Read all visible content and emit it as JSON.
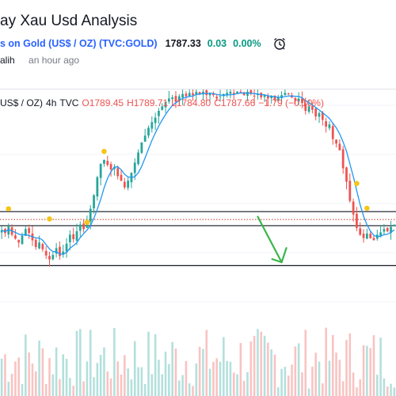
{
  "header": {
    "title": "ay Xau Usd Analysis",
    "symbol_link": "s on Gold (US$ / OZ) (TVC:GOLD)",
    "price": "1787.33",
    "change": "0.03",
    "change_pct": "0.00%",
    "author": "alih",
    "time": "an hour ago",
    "alarm_icon": "alarm-clock-icon"
  },
  "legend": {
    "symbol": "US$ / OZ)",
    "interval": "4h",
    "source": "TVC",
    "open": "O1789.45",
    "high": "H1789.71",
    "low": "L1784.80",
    "close": "C1787.66",
    "change": "−1.79 (−0.10%)"
  },
  "colors": {
    "up": "#26a69a",
    "down": "#ef5350",
    "ma_line": "#2196f3",
    "dot": "#f5c518",
    "arrow": "#3ab54a",
    "level_line": "#131722",
    "dotted_line": "#c0392b"
  },
  "chart_data": {
    "type": "candlestick",
    "interval": "4h",
    "ylim": [
      1768,
      1806
    ],
    "closes": [
      1781.0,
      1780.5,
      1781.8,
      1780.2,
      1779.5,
      1778.8,
      1780.0,
      1781.2,
      1780.5,
      1779.2,
      1778.0,
      1778.8,
      1777.6,
      1776.5,
      1775.8,
      1776.6,
      1777.8,
      1776.4,
      1777.2,
      1778.6,
      1780.2,
      1779.4,
      1780.8,
      1782.0,
      1781.2,
      1782.6,
      1784.8,
      1787.2,
      1790.4,
      1792.8,
      1793.5,
      1792.6,
      1791.8,
      1792.2,
      1790.6,
      1789.8,
      1788.6,
      1789.8,
      1791.2,
      1793.0,
      1794.8,
      1796.6,
      1797.8,
      1799.2,
      1800.2,
      1801.0,
      1802.2,
      1803.0,
      1803.8,
      1804.4,
      1804.6,
      1803.8,
      1804.8,
      1805.2,
      1804.8,
      1805.4,
      1805.0,
      1805.6,
      1805.2,
      1805.6,
      1805.0,
      1805.4,
      1805.0,
      1804.4,
      1804.8,
      1805.2,
      1805.4,
      1805.6,
      1805.2,
      1805.6,
      1805.4,
      1805.0,
      1805.6,
      1805.2,
      1804.8,
      1805.2,
      1804.6,
      1805.0,
      1804.4,
      1804.8,
      1804.2,
      1804.6,
      1805.0,
      1805.4,
      1805.2,
      1804.6,
      1804.0,
      1804.4,
      1803.6,
      1802.2,
      1803.0,
      1802.4,
      1801.2,
      1801.8,
      1800.6,
      1799.4,
      1799.8,
      1797.2,
      1796.4,
      1795.2,
      1792.0,
      1789.6,
      1786.2,
      1783.8,
      1781.4,
      1780.2,
      1779.6,
      1780.4,
      1779.6,
      1779.2,
      1780.2,
      1780.6,
      1781.2,
      1780.8,
      1781.6,
      1782.0
    ],
    "levels": {
      "upper_line": 1784.3,
      "dotted_line": 1782.9,
      "lower_line": 1781.8,
      "bottom_line": 1774.7
    },
    "dots": [
      {
        "index": 2,
        "value": 1784.8
      },
      {
        "index": 14,
        "value": 1783.0
      },
      {
        "index": 25,
        "value": 1782.4
      },
      {
        "index": 30,
        "value": 1795.0
      },
      {
        "index": 104,
        "value": 1789.3
      },
      {
        "index": 107,
        "value": 1784.9
      }
    ],
    "arrow": {
      "from_index": 75,
      "from_value": 1783.4,
      "to_index": 82,
      "to_value": 1775.3
    }
  }
}
